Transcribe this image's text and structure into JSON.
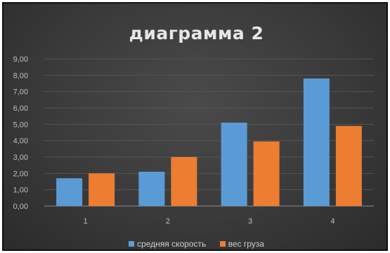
{
  "chart_data": {
    "type": "bar",
    "title": "диаграмма 2",
    "categories": [
      "1",
      "2",
      "3",
      "4"
    ],
    "series": [
      {
        "name": "средняя скорость",
        "values": [
          1.7,
          2.1,
          5.1,
          7.8
        ],
        "color": "#5b9bd5"
      },
      {
        "name": "вес груза",
        "values": [
          2.0,
          3.0,
          3.95,
          4.9
        ],
        "color": "#ed7d31"
      }
    ],
    "y_ticks": [
      "0,00",
      "1,00",
      "2,00",
      "3,00",
      "4,00",
      "5,00",
      "6,00",
      "7,00",
      "8,00",
      "9,00"
    ],
    "ylim": [
      0,
      9
    ],
    "grid": true,
    "legend_position": "bottom",
    "background": "#3a3a3a"
  }
}
